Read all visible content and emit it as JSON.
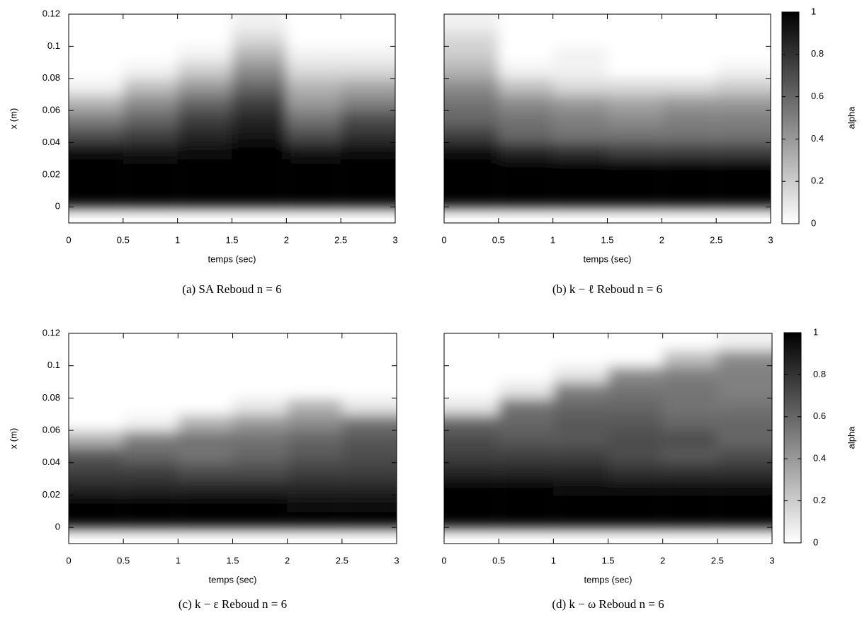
{
  "chart_data": [
    {
      "type": "heatmap",
      "caption": "(a) SA Reboud n = 6",
      "xlabel": "temps (sec)",
      "ylabel": "x (m)",
      "xlim": [
        0,
        3
      ],
      "xticks": [
        0,
        0.5,
        1,
        1.5,
        2,
        2.5,
        3
      ],
      "ylim": [
        -0.01,
        0.12
      ],
      "yticks": [
        0,
        0.02,
        0.04,
        0.06,
        0.08,
        0.1,
        0.12
      ],
      "show_ytick_labels": true,
      "colorbar": false,
      "x": [
        0.25,
        0.75,
        1.25,
        1.75,
        2.25,
        2.75
      ],
      "y": [
        0.005,
        0.015,
        0.025,
        0.035,
        0.045,
        0.055,
        0.065,
        0.075,
        0.085,
        0.095,
        0.105,
        0.115
      ],
      "z": [
        [
          1,
          1,
          1,
          1,
          1,
          1
        ],
        [
          1,
          1,
          1,
          1,
          1,
          1
        ],
        [
          1,
          1,
          1,
          1,
          1,
          1
        ],
        [
          0.95,
          0.9,
          0.95,
          1,
          0.9,
          0.95
        ],
        [
          0.7,
          0.75,
          0.85,
          0.9,
          0.7,
          0.8
        ],
        [
          0.5,
          0.6,
          0.75,
          0.85,
          0.55,
          0.7
        ],
        [
          0.3,
          0.45,
          0.6,
          0.75,
          0.4,
          0.5
        ],
        [
          0.05,
          0.25,
          0.4,
          0.6,
          0.3,
          0.35
        ],
        [
          0,
          0.05,
          0.2,
          0.45,
          0.15,
          0.15
        ],
        [
          0,
          0,
          0.05,
          0.3,
          0.05,
          0.05
        ],
        [
          0,
          0,
          0,
          0.15,
          0,
          0
        ],
        [
          0,
          0,
          0,
          0.05,
          0,
          0
        ]
      ]
    },
    {
      "type": "heatmap",
      "caption": "(b) k − ℓ Reboud n = 6",
      "xlabel": "temps (sec)",
      "xlim": [
        0,
        3
      ],
      "xticks": [
        0,
        0.5,
        1,
        1.5,
        2,
        2.5,
        3
      ],
      "ylim": [
        -0.01,
        0.12
      ],
      "yticks": [
        0,
        0.02,
        0.04,
        0.06,
        0.08,
        0.1,
        0.12
      ],
      "show_ytick_labels": false,
      "colorbar": true,
      "colorbar_label": "alpha",
      "clim": [
        0,
        1
      ],
      "cticks": [
        0,
        0.2,
        0.4,
        0.6,
        0.8,
        1
      ],
      "x": [
        0.25,
        0.75,
        1.25,
        1.75,
        2.25,
        2.75
      ],
      "y": [
        0.005,
        0.015,
        0.025,
        0.035,
        0.045,
        0.055,
        0.065,
        0.075,
        0.085,
        0.095,
        0.105,
        0.115
      ],
      "z": [
        [
          1,
          1,
          1,
          1,
          1,
          1
        ],
        [
          1,
          1,
          1,
          1,
          1,
          1
        ],
        [
          1,
          1,
          1,
          1,
          1,
          1
        ],
        [
          0.95,
          0.85,
          0.8,
          0.75,
          0.75,
          0.75
        ],
        [
          0.75,
          0.6,
          0.55,
          0.55,
          0.55,
          0.55
        ],
        [
          0.6,
          0.55,
          0.5,
          0.45,
          0.5,
          0.5
        ],
        [
          0.55,
          0.45,
          0.4,
          0.35,
          0.4,
          0.4
        ],
        [
          0.45,
          0.25,
          0.15,
          0.15,
          0.15,
          0.2
        ],
        [
          0.3,
          0.05,
          0.05,
          0,
          0,
          0.05
        ],
        [
          0.2,
          0,
          0.05,
          0,
          0,
          0
        ],
        [
          0.15,
          0,
          0,
          0,
          0,
          0
        ],
        [
          0.05,
          0,
          0,
          0,
          0,
          0
        ]
      ]
    },
    {
      "type": "heatmap",
      "caption": "(c) k − ε Reboud n = 6",
      "xlabel": "temps (sec)",
      "ylabel": "x (m)",
      "xlim": [
        0,
        3
      ],
      "xticks": [
        0,
        0.5,
        1,
        1.5,
        2,
        2.5,
        3
      ],
      "ylim": [
        -0.01,
        0.12
      ],
      "yticks": [
        0,
        0.02,
        0.04,
        0.06,
        0.08,
        0.1,
        0.12
      ],
      "show_ytick_labels": true,
      "colorbar": false,
      "x": [
        0.25,
        0.75,
        1.25,
        1.75,
        2.25,
        2.75
      ],
      "y": [
        0.005,
        0.015,
        0.025,
        0.035,
        0.045,
        0.055,
        0.065,
        0.075,
        0.085,
        0.095,
        0.105,
        0.115
      ],
      "z": [
        [
          1,
          1,
          1,
          1,
          1,
          1
        ],
        [
          1,
          1,
          1,
          1,
          0.95,
          0.95
        ],
        [
          0.85,
          0.85,
          0.85,
          0.85,
          0.85,
          0.85
        ],
        [
          0.75,
          0.75,
          0.7,
          0.7,
          0.75,
          0.75
        ],
        [
          0.65,
          0.6,
          0.55,
          0.6,
          0.65,
          0.7
        ],
        [
          0.3,
          0.5,
          0.55,
          0.55,
          0.6,
          0.65
        ],
        [
          0,
          0.05,
          0.3,
          0.4,
          0.45,
          0.55
        ],
        [
          0,
          0,
          0,
          0.1,
          0.3,
          0.1
        ],
        [
          0,
          0,
          0,
          0,
          0,
          0
        ],
        [
          0,
          0,
          0,
          0,
          0,
          0
        ],
        [
          0,
          0,
          0,
          0,
          0,
          0
        ],
        [
          0,
          0,
          0,
          0,
          0,
          0
        ]
      ]
    },
    {
      "type": "heatmap",
      "caption": "(d) k − ω Reboud n = 6",
      "xlabel": "temps (sec)",
      "xlim": [
        0,
        3
      ],
      "xticks": [
        0,
        0.5,
        1,
        1.5,
        2,
        2.5,
        3
      ],
      "ylim": [
        -0.01,
        0.12
      ],
      "yticks": [
        0,
        0.02,
        0.04,
        0.06,
        0.08,
        0.1,
        0.12
      ],
      "show_ytick_labels": false,
      "colorbar": true,
      "colorbar_label": "alpha",
      "clim": [
        0,
        1
      ],
      "cticks": [
        0,
        0.2,
        0.4,
        0.6,
        0.8,
        1
      ],
      "x": [
        0.25,
        0.75,
        1.25,
        1.75,
        2.25,
        2.75
      ],
      "y": [
        0.005,
        0.015,
        0.025,
        0.035,
        0.045,
        0.055,
        0.065,
        0.075,
        0.085,
        0.095,
        0.105,
        0.115
      ],
      "z": [
        [
          1,
          1,
          1,
          1,
          1,
          1
        ],
        [
          1,
          1,
          1,
          1,
          1,
          1
        ],
        [
          1,
          1,
          0.95,
          0.95,
          0.95,
          0.95
        ],
        [
          0.85,
          0.85,
          0.85,
          0.8,
          0.8,
          0.8
        ],
        [
          0.75,
          0.75,
          0.75,
          0.7,
          0.65,
          0.7
        ],
        [
          0.7,
          0.65,
          0.65,
          0.7,
          0.7,
          0.6
        ],
        [
          0.6,
          0.6,
          0.65,
          0.65,
          0.6,
          0.6
        ],
        [
          0.1,
          0.55,
          0.6,
          0.6,
          0.55,
          0.55
        ],
        [
          0,
          0.1,
          0.5,
          0.55,
          0.55,
          0.5
        ],
        [
          0,
          0,
          0.1,
          0.45,
          0.5,
          0.5
        ],
        [
          0,
          0,
          0,
          0,
          0.25,
          0.45
        ],
        [
          0,
          0,
          0,
          0,
          0,
          0.05
        ]
      ]
    }
  ]
}
